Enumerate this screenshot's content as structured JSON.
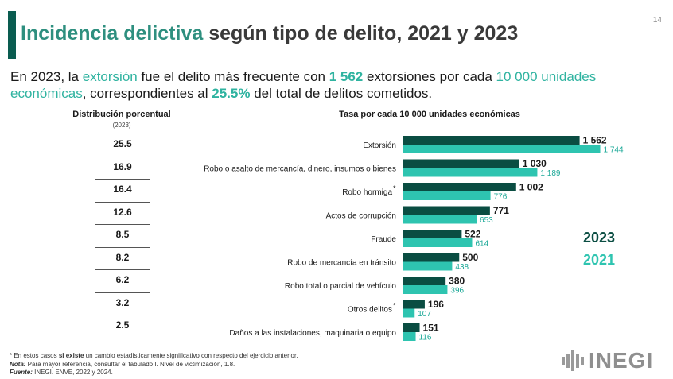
{
  "page_number": "14",
  "header": {
    "title_accent": "Incidencia delictiva",
    "title_rest": " según tipo de delito, 2021 y 2023",
    "subtitle": {
      "p1": "En 2023, la ",
      "h1": "extorsión",
      "p2": " fue el delito más frecuente con ",
      "h2": "1 562",
      "p3": " extorsiones por cada ",
      "h3": "10 000 unidades económicas",
      "p4": ", correspondientes al ",
      "h4": "25.5%",
      "p5": " del total de delitos cometidos."
    }
  },
  "distribution": {
    "title": "Distribución porcentual",
    "subtitle": "(2023)",
    "values": [
      "25.5",
      "16.9",
      "16.4",
      "12.6",
      "8.5",
      "8.2",
      "6.2",
      "3.2",
      "2.5"
    ]
  },
  "chart_data": {
    "type": "bar",
    "orientation": "horizontal",
    "title": "Tasa por cada 10 000 unidades económicas",
    "categories": [
      "Extorsión",
      "Robo o asalto de mercancía, dinero, insumos o bienes",
      "Robo hormiga",
      "Actos de corrupción",
      "Fraude",
      "Robo de mercancía en tránsito",
      "Robo total o parcial de vehículo",
      "Otros delitos",
      "Daños a las instalaciones, maquinaria o equipo"
    ],
    "marked_categories": [
      "Robo hormiga",
      "Otros delitos"
    ],
    "series": [
      {
        "name": "2023",
        "color": "#0a4d42",
        "values": [
          1562,
          1030,
          1002,
          771,
          522,
          500,
          380,
          196,
          151
        ],
        "labels": [
          "1 562",
          "1 030",
          "1 002",
          "771",
          "522",
          "500",
          "380",
          "196",
          "151"
        ]
      },
      {
        "name": "2021",
        "color": "#2ec4b0",
        "values": [
          1744,
          1189,
          776,
          653,
          614,
          438,
          396,
          107,
          116
        ],
        "labels": [
          "1 744",
          "1 189",
          "776",
          "653",
          "614",
          "438",
          "396",
          "107",
          "116"
        ]
      }
    ],
    "legend": {
      "first": "2023",
      "second": "2021",
      "placement": "right"
    }
  },
  "footnotes": {
    "f1_a": "* En estos casos ",
    "f1_b": "si existe",
    "f1_c": " un cambio estadísticamente significativo con respecto del ejercicio anterior.",
    "f2_a": "Nota:",
    "f2_b": " Para mayor referencia, consultar el tabulado I. Nivel de victimización, 1.8.",
    "f3_a": "Fuente:",
    "f3_b": " INEGI. ENVE, 2022 y 2024."
  },
  "logo_text": "INEGI",
  "colors": {
    "accent_dark": "#0a5c50",
    "accent_light": "#2fb3a0"
  }
}
